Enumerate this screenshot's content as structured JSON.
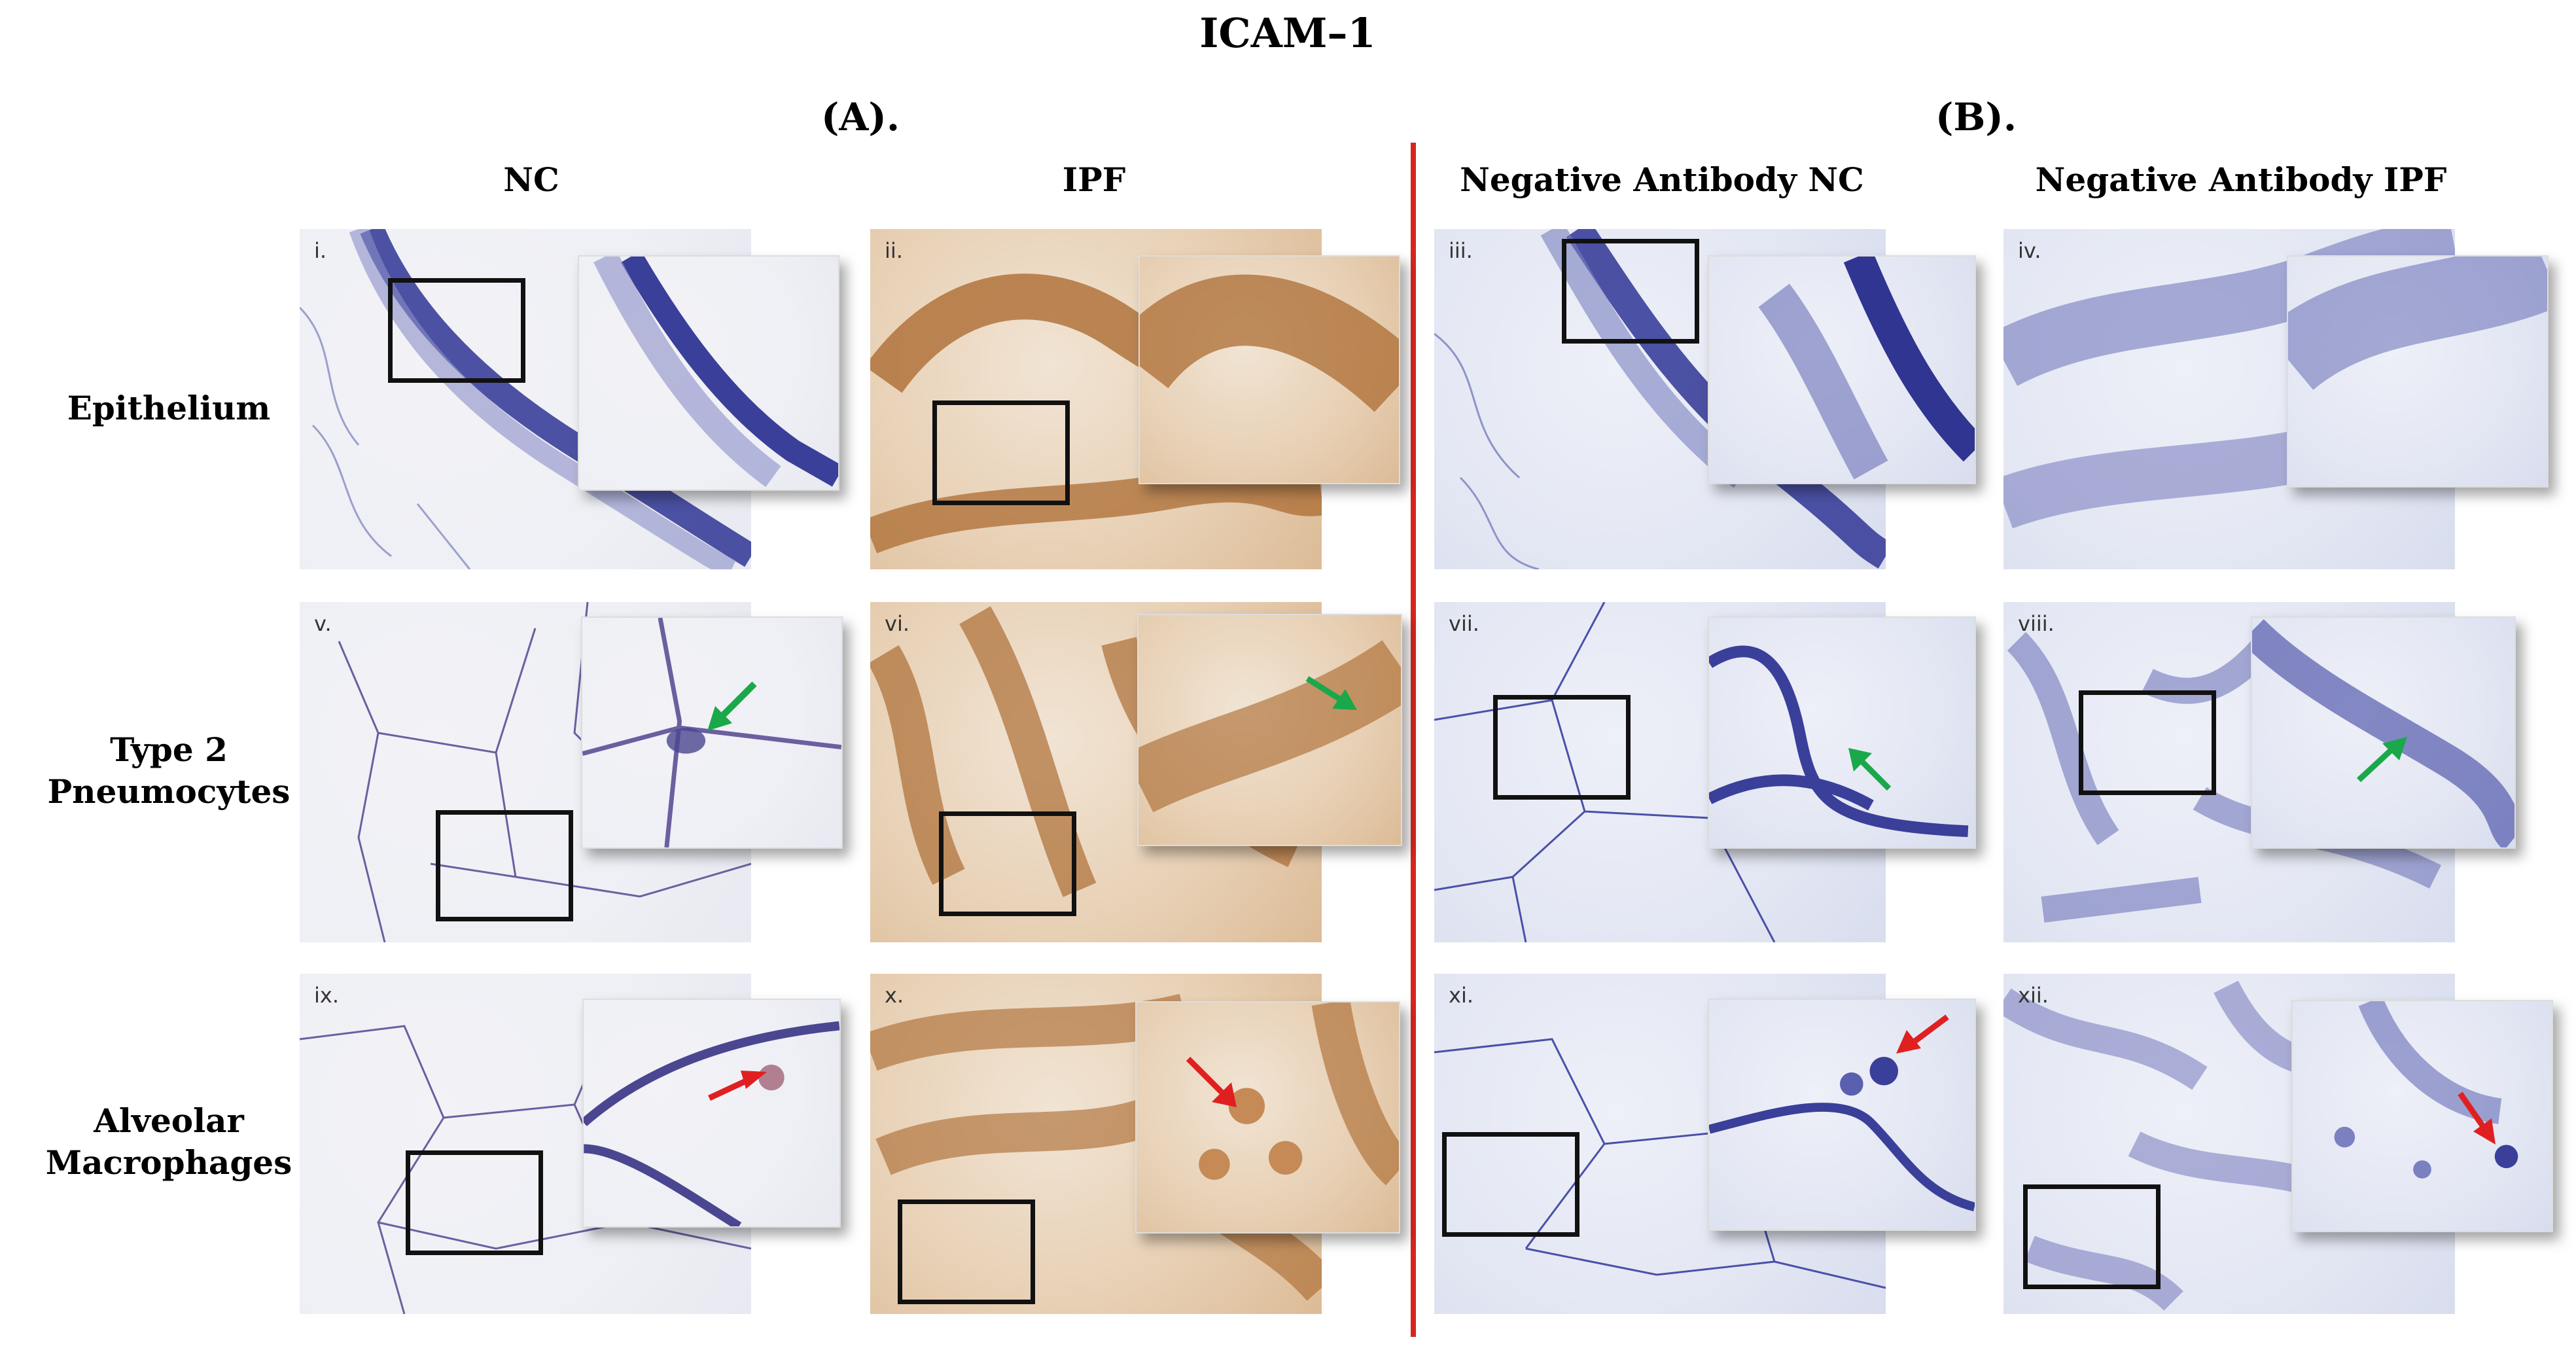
{
  "figure": {
    "title": "ICAM–1",
    "section_a": "(A).",
    "section_b": "(B).",
    "columns": [
      "NC",
      "IPF",
      "Negative Antibody NC",
      "Negative Antibody IPF"
    ],
    "rows": [
      "Epithelium",
      "Type 2 Pneumocytes",
      "Alveolar Macrophages"
    ],
    "panels": [
      "i.",
      "ii.",
      "iii.",
      "iv.",
      "v.",
      "vi.",
      "vii.",
      "viii.",
      "ix.",
      "x.",
      "xi.",
      "xii."
    ]
  },
  "colors": {
    "divider": "#d6261f",
    "green_arrow": "#1aa84a",
    "red_arrow": "#e02020",
    "hematoxylin": "#3a3f9a",
    "dab_brown": "#a8652a"
  }
}
